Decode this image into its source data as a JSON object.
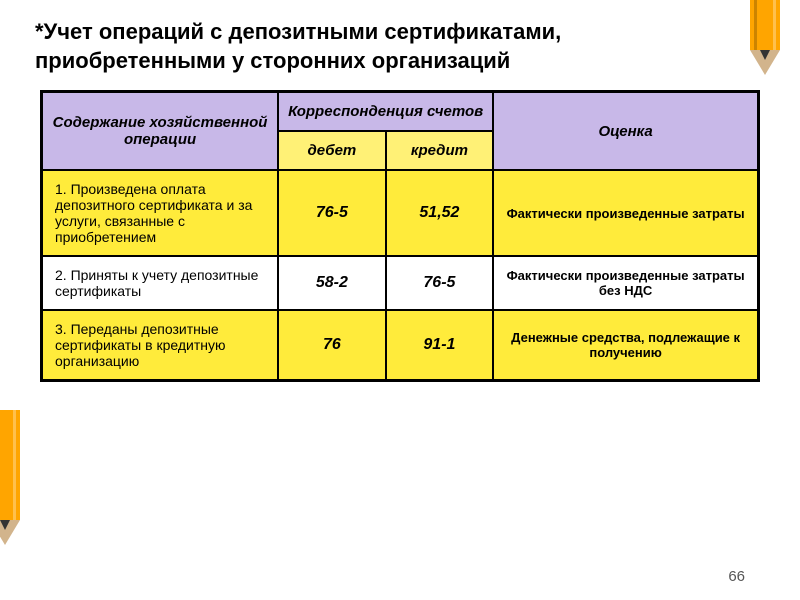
{
  "title": "*Учет операций с депозитными сертификатами, приобретенными у сторонних организаций",
  "headers": {
    "content": "Содержание хозяйственной операции",
    "correspondence": "Корреспонденция счетов",
    "debit": "дебет",
    "credit": "кредит",
    "evaluation": "Оценка"
  },
  "rows": [
    {
      "content": "1. Произведена оплата депозитного сертификата и за услуги, связанные с приобретением",
      "debit": "76-5",
      "credit": "51,52",
      "evaluation": "Фактически произведенные затраты",
      "bg": "row-yellow"
    },
    {
      "content": "2. Приняты к учету депозитные сертификаты",
      "debit": "58-2",
      "credit": "76-5",
      "evaluation": "Фактически произведенные затраты без НДС",
      "bg": "row-white"
    },
    {
      "content": "3. Переданы депозитные сертификаты в кредитную организацию",
      "debit": "76",
      "credit": "91-1",
      "evaluation": "Денежные средства, подлежащие к получению",
      "bg": "row-yellow"
    }
  ],
  "pageNumber": "66",
  "colors": {
    "header_purple": "#c8b8e8",
    "header_yellow": "#fff176",
    "row_yellow": "#ffeb3b",
    "row_white": "#ffffff",
    "border": "#000000"
  }
}
